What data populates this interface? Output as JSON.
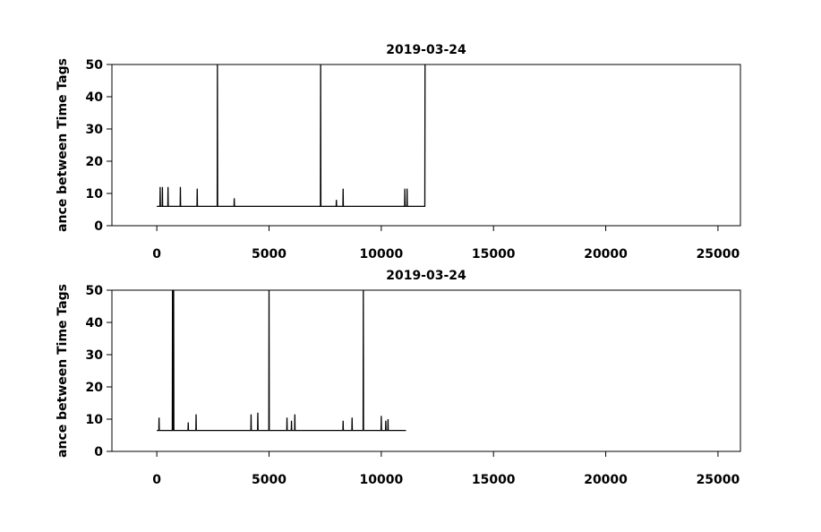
{
  "chart_data": [
    {
      "type": "line",
      "title": "2019-03-24",
      "ylabel": "ance between Time Tags",
      "xlim": [
        -2000,
        26000
      ],
      "xticks": [
        0,
        5000,
        10000,
        15000,
        20000,
        25000
      ],
      "ylim": [
        0,
        50
      ],
      "yticks": [
        0,
        10,
        20,
        30,
        40,
        50
      ],
      "x": [
        0,
        140,
        150,
        160,
        240,
        250,
        260,
        490,
        500,
        510,
        1040,
        1050,
        1060,
        1790,
        1800,
        1810,
        2690,
        2700,
        2710,
        3440,
        3450,
        3460,
        7290,
        7300,
        7310,
        7990,
        8000,
        8010,
        8290,
        8300,
        8310,
        11040,
        11050,
        11060,
        11140,
        11150,
        11160,
        11940,
        11950
      ],
      "series": [
        {
          "color": "#000000",
          "values": [
            6,
            6,
            12,
            6,
            6,
            12,
            6,
            6,
            12,
            6,
            6,
            12,
            6,
            6,
            11.5,
            6,
            6,
            50,
            6,
            6,
            8.5,
            6,
            6,
            50,
            6,
            6,
            8,
            6,
            6,
            11.5,
            6,
            6,
            11.5,
            6,
            6,
            11.5,
            6,
            6,
            50
          ]
        }
      ]
    },
    {
      "type": "line",
      "title": "2019-03-24",
      "ylabel": "ance between Time Tags",
      "xlim": [
        -2000,
        26000
      ],
      "xticks": [
        0,
        5000,
        10000,
        15000,
        20000,
        25000
      ],
      "ylim": [
        0,
        50
      ],
      "yticks": [
        0,
        10,
        20,
        30,
        40,
        50
      ],
      "x": [
        0,
        90,
        100,
        110,
        690,
        700,
        710,
        740,
        750,
        760,
        1390,
        1400,
        1410,
        1740,
        1750,
        1760,
        4190,
        4200,
        4210,
        4490,
        4500,
        4510,
        4990,
        5000,
        5010,
        5790,
        5800,
        5810,
        5990,
        6000,
        6010,
        6140,
        6150,
        6160,
        8290,
        8300,
        8310,
        8690,
        8700,
        8710,
        9190,
        9200,
        9210,
        9990,
        10000,
        10010,
        10190,
        10200,
        10210,
        10290,
        10300,
        10310,
        11100
      ],
      "series": [
        {
          "color": "#000000",
          "values": [
            6.5,
            6.5,
            10.5,
            6.5,
            6.5,
            50,
            6.5,
            6.5,
            50,
            6.5,
            6.5,
            9,
            6.5,
            6.5,
            11.5,
            6.5,
            6.5,
            11.5,
            6.5,
            6.5,
            12,
            6.5,
            6.5,
            50,
            6.5,
            6.5,
            10.5,
            6.5,
            6.5,
            9.5,
            6.5,
            6.5,
            11.5,
            6.5,
            6.5,
            9.5,
            6.5,
            6.5,
            10.5,
            6.5,
            6.5,
            50,
            6.5,
            6.5,
            11,
            6.5,
            6.5,
            9.5,
            6.5,
            6.5,
            10,
            6.5,
            6.5
          ]
        }
      ]
    }
  ]
}
